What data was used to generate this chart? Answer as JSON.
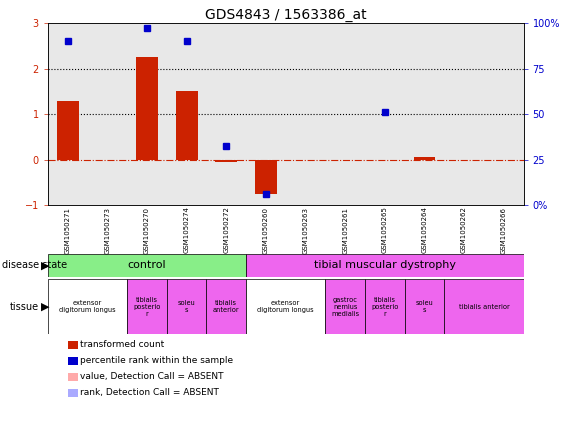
{
  "title": "GDS4843 / 1563386_at",
  "samples": [
    "GSM1050271",
    "GSM1050273",
    "GSM1050270",
    "GSM1050274",
    "GSM1050272",
    "GSM1050260",
    "GSM1050263",
    "GSM1050261",
    "GSM1050265",
    "GSM1050264",
    "GSM1050262",
    "GSM1050266"
  ],
  "bar_values": [
    1.3,
    0.0,
    2.25,
    1.5,
    -0.05,
    -0.75,
    0.0,
    0.0,
    0.0,
    0.05,
    0.0,
    0.0
  ],
  "dot_values": [
    2.6,
    null,
    2.9,
    2.6,
    0.3,
    -0.75,
    null,
    null,
    1.05,
    null,
    null,
    null
  ],
  "bar_absent": [
    false,
    false,
    false,
    false,
    false,
    false,
    false,
    false,
    false,
    false,
    false,
    false
  ],
  "dot_absent": [
    false,
    true,
    false,
    false,
    false,
    false,
    true,
    true,
    false,
    true,
    true,
    true
  ],
  "ylim": [
    -1.0,
    3.0
  ],
  "y_left_ticks": [
    -1,
    0,
    1,
    2,
    3
  ],
  "y_right_labels": [
    "0%",
    "25",
    "50",
    "75",
    "100%"
  ],
  "dotted_lines": [
    1,
    2
  ],
  "dashdot_line": 0,
  "bar_color": "#cc2200",
  "dot_color": "#0000cc",
  "bar_absent_color": "#ffaaaa",
  "dot_absent_color": "#aaaaff",
  "control_label": "control",
  "dystrophy_label": "tibial muscular dystrophy",
  "control_color": "#88ee88",
  "dystrophy_color": "#ee66ee",
  "control_n": 5,
  "dystrophy_n": 7,
  "tissue_data": [
    {
      "label": "extensor\ndigitorum longus",
      "start": 0,
      "end": 2,
      "color": "#ffffff"
    },
    {
      "label": "tibialis\nposterio\nr",
      "start": 2,
      "end": 3,
      "color": "#ee66ee"
    },
    {
      "label": "soleu\ns",
      "start": 3,
      "end": 4,
      "color": "#ee66ee"
    },
    {
      "label": "tibialis\nanterior",
      "start": 4,
      "end": 5,
      "color": "#ee66ee"
    },
    {
      "label": "extensor\ndigitorum longus",
      "start": 5,
      "end": 7,
      "color": "#ffffff"
    },
    {
      "label": "gastroc\nnemius\nmedialis",
      "start": 7,
      "end": 8,
      "color": "#ee66ee"
    },
    {
      "label": "tibialis\nposterio\nr",
      "start": 8,
      "end": 9,
      "color": "#ee66ee"
    },
    {
      "label": "soleu\ns",
      "start": 9,
      "end": 10,
      "color": "#ee66ee"
    },
    {
      "label": "tibialis anterior",
      "start": 10,
      "end": 12,
      "color": "#ee66ee"
    }
  ],
  "legend_items": [
    {
      "label": "transformed count",
      "color": "#cc2200"
    },
    {
      "label": "percentile rank within the sample",
      "color": "#0000cc"
    },
    {
      "label": "value, Detection Call = ABSENT",
      "color": "#ffaaaa"
    },
    {
      "label": "rank, Detection Call = ABSENT",
      "color": "#aaaaff"
    }
  ],
  "bar_color_left": "#cc2200",
  "dot_color_right": "#0000cc",
  "plot_bg_color": "#e8e8e8",
  "figsize": [
    5.63,
    4.23
  ],
  "dpi": 100
}
